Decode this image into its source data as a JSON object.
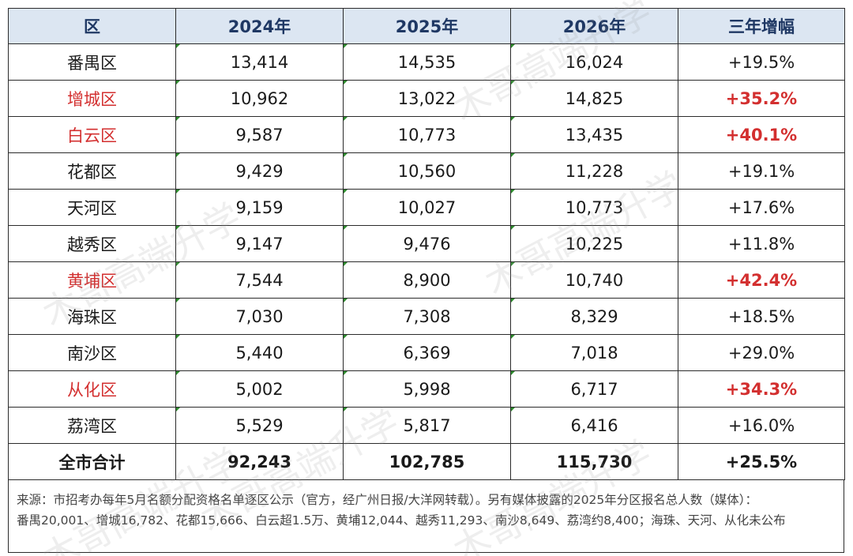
{
  "table": {
    "headers": [
      "区",
      "2024年",
      "2025年",
      "2026年",
      "三年增幅"
    ],
    "rows": [
      {
        "district": "番禺区",
        "y2024": "13,414",
        "y2025": "14,535",
        "y2026": "16,024",
        "growth": "+19.5%",
        "highlight": false
      },
      {
        "district": "增城区",
        "y2024": "10,962",
        "y2025": "13,022",
        "y2026": "14,825",
        "growth": "+35.2%",
        "highlight": true
      },
      {
        "district": "白云区",
        "y2024": "9,587",
        "y2025": "10,773",
        "y2026": "13,435",
        "growth": "+40.1%",
        "highlight": true
      },
      {
        "district": "花都区",
        "y2024": "9,429",
        "y2025": "10,560",
        "y2026": "11,228",
        "growth": "+19.1%",
        "highlight": false
      },
      {
        "district": "天河区",
        "y2024": "9,159",
        "y2025": "10,027",
        "y2026": "10,773",
        "growth": "+17.6%",
        "highlight": false
      },
      {
        "district": "越秀区",
        "y2024": "9,147",
        "y2025": "9,476",
        "y2026": "10,225",
        "growth": "+11.8%",
        "highlight": false
      },
      {
        "district": "黄埔区",
        "y2024": "7,544",
        "y2025": "8,900",
        "y2026": "10,740",
        "growth": "+42.4%",
        "highlight": true
      },
      {
        "district": "海珠区",
        "y2024": "7,030",
        "y2025": "7,308",
        "y2026": "8,329",
        "growth": "+18.5%",
        "highlight": false
      },
      {
        "district": "南沙区",
        "y2024": "5,440",
        "y2025": "6,369",
        "y2026": "7,018",
        "growth": "+29.0%",
        "highlight": false
      },
      {
        "district": "从化区",
        "y2024": "5,002",
        "y2025": "5,998",
        "y2026": "6,717",
        "growth": "+34.3%",
        "highlight": true
      },
      {
        "district": "荔湾区",
        "y2024": "5,529",
        "y2025": "5,817",
        "y2026": "6,416",
        "growth": "+16.0%",
        "highlight": false
      }
    ],
    "total": {
      "district": "全市合计",
      "y2024": "92,243",
      "y2025": "102,785",
      "y2026": "115,730",
      "growth": "+25.5%"
    }
  },
  "note": {
    "line1": "来源：市招考办每年5月名额分配资格名单逐区公示（官方，经广州日报/大洋网转载）。另有媒体披露的2025年分区报名总人数（媒体）：",
    "line2": "番禺20,001、增城16,782、花都15,666、白云超1.5万、黄埔12,044、越秀11,293、南沙8,649、荔湾约8,400；海珠、天河、从化未公布"
  },
  "watermark": "木哥高端升学",
  "colors": {
    "header_bg": "#dce6f2",
    "header_text": "#1f3864",
    "highlight": "#d32f2f"
  }
}
